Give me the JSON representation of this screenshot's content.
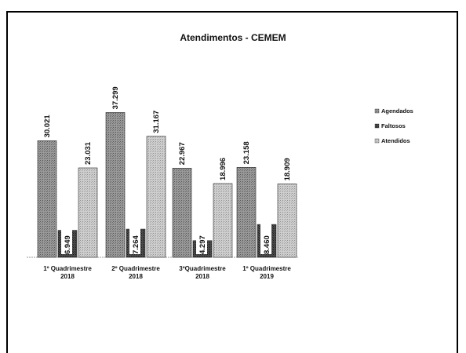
{
  "chart_data": {
    "type": "bar",
    "title": "Atendimentos - CEMEM",
    "categories": [
      [
        "1º Quadrimestre",
        "2018"
      ],
      [
        "2º Quadrimestre",
        "2018"
      ],
      [
        "3ºQuadrimestre",
        "2018"
      ],
      [
        "1º Quadrimestre",
        "2019"
      ]
    ],
    "series": [
      {
        "name": "Agendados",
        "values": [
          30021,
          37299,
          22967,
          23158
        ],
        "labels": [
          "30.021",
          "37.299",
          "22.967",
          "23.158"
        ],
        "color": "#8a8a8a"
      },
      {
        "name": "Faltosos",
        "values": [
          6949,
          7264,
          4297,
          8460
        ],
        "labels": [
          "6.949",
          "7.264",
          "4.297",
          "8.460"
        ],
        "color": "#3c3c3c"
      },
      {
        "name": "Atendidos",
        "values": [
          23031,
          31167,
          18996,
          18909
        ],
        "labels": [
          "23.031",
          "31.167",
          "18.996",
          "18.909"
        ],
        "color": "#bdbdbd"
      }
    ],
    "ylim": [
      0,
      40000
    ],
    "legend_position": "right",
    "grid": false
  }
}
